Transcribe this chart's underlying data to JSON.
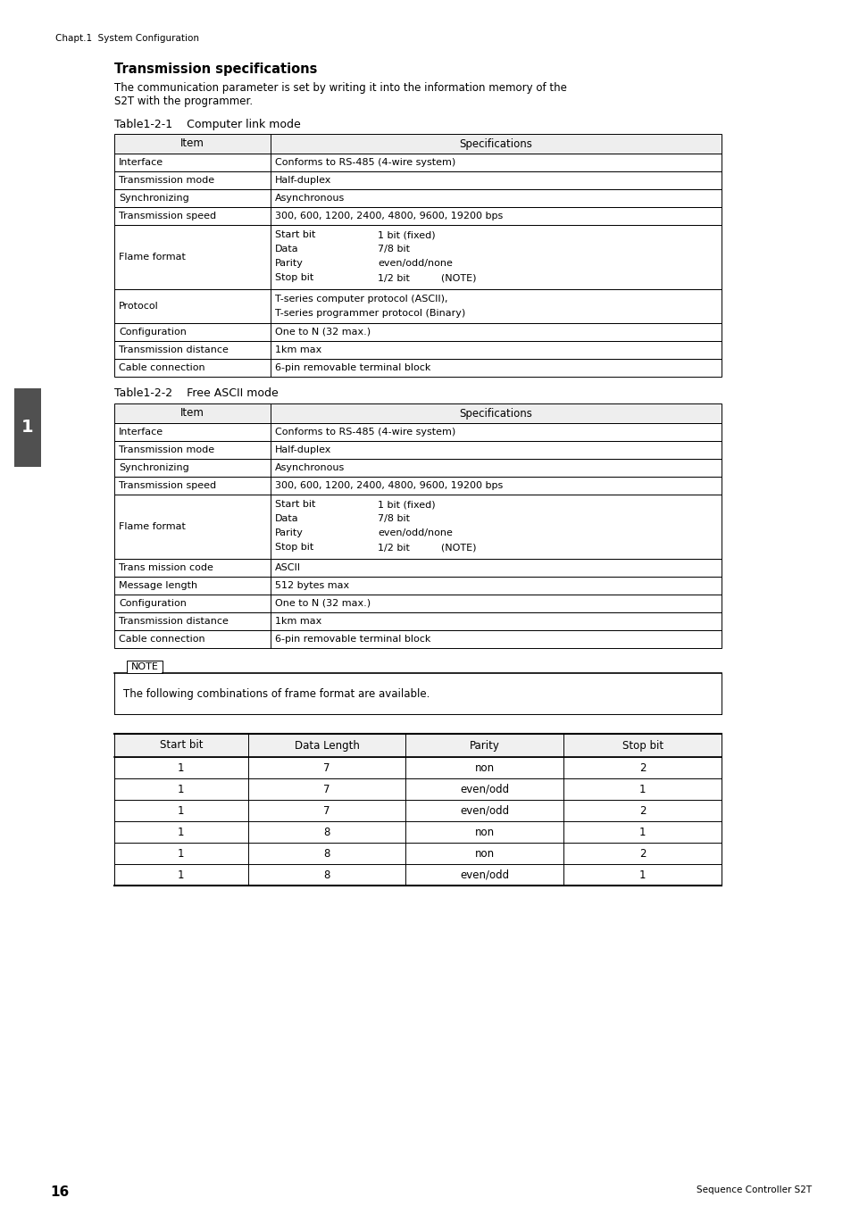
{
  "page_header": "Chapt.1  System Configuration",
  "title": "Transmission specifications",
  "intro_text_line1": "The communication parameter is set by writing it into the information memory of the",
  "intro_text_line2": "S2T with the programmer.",
  "table1_title": "Table1-2-1    Computer link mode",
  "table1_rows": [
    [
      "Interface",
      "Conforms to RS-485 (4-wire system)"
    ],
    [
      "Transmission mode",
      "Half-duplex"
    ],
    [
      "Synchronizing",
      "Asynchronous"
    ],
    [
      "Transmission speed",
      "300, 600, 1200, 2400, 4800, 9600, 19200 bps"
    ],
    [
      "Flame format",
      "flame_format"
    ],
    [
      "Protocol",
      "T-series computer protocol (ASCII),\nT-series programmer protocol (Binary)"
    ],
    [
      "Configuration",
      "One to N (32 max.)"
    ],
    [
      "Transmission distance",
      "1km max"
    ],
    [
      "Cable connection",
      "6-pin removable terminal block"
    ]
  ],
  "flame_format_lines": [
    [
      "Start bit",
      "1 bit (fixed)"
    ],
    [
      "Data",
      "7/8 bit"
    ],
    [
      "Parity",
      "even/odd/none"
    ],
    [
      "Stop bit",
      "1/2 bit          (NOTE)"
    ]
  ],
  "table2_title": "Table1-2-2    Free ASCII mode",
  "table2_rows": [
    [
      "Interface",
      "Conforms to RS-485 (4-wire system)"
    ],
    [
      "Transmission mode",
      "Half-duplex"
    ],
    [
      "Synchronizing",
      "Asynchronous"
    ],
    [
      "Transmission speed",
      "300, 600, 1200, 2400, 4800, 9600, 19200 bps"
    ],
    [
      "Flame format",
      "flame_format"
    ],
    [
      "Trans mission code",
      "ASCII"
    ],
    [
      "Message length",
      "512 bytes max"
    ],
    [
      "Configuration",
      "One to N (32 max.)"
    ],
    [
      "Transmission distance",
      "1km max"
    ],
    [
      "Cable connection",
      "6-pin removable terminal block"
    ]
  ],
  "note_text": "The following combinations of frame format are available.",
  "frame_table_headers": [
    "Start bit",
    "Data Length",
    "Parity",
    "Stop bit"
  ],
  "frame_table_rows": [
    [
      "1",
      "7",
      "non",
      "2"
    ],
    [
      "1",
      "7",
      "even/odd",
      "1"
    ],
    [
      "1",
      "7",
      "even/odd",
      "2"
    ],
    [
      "1",
      "8",
      "non",
      "1"
    ],
    [
      "1",
      "8",
      "non",
      "2"
    ],
    [
      "1",
      "8",
      "even/odd",
      "1"
    ]
  ],
  "page_number": "16",
  "page_footer": "Sequence Controller S2T",
  "sidebar_number": "1",
  "bg_color": "#ffffff",
  "sidebar_bg": "#505050"
}
